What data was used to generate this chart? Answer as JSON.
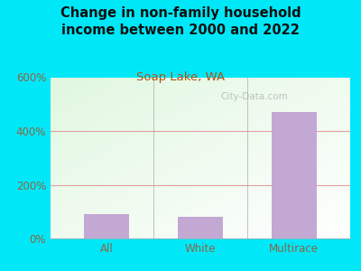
{
  "title": "Change in non-family household\nincome between 2000 and 2022",
  "subtitle": "Soap Lake, WA",
  "categories": [
    "All",
    "White",
    "Multirace"
  ],
  "values": [
    90,
    80,
    470
  ],
  "bar_color": "#c4a8d4",
  "background_outer": "#00e8f8",
  "background_plot": "#e8f5e4",
  "title_color": "#111111",
  "subtitle_color": "#b05010",
  "tick_color": "#886644",
  "grid_color": "#e0a0a0",
  "ylim": [
    0,
    600
  ],
  "yticks": [
    0,
    200,
    400,
    600
  ],
  "ytick_labels": [
    "0%",
    "200%",
    "400%",
    "600%"
  ],
  "watermark": "City-Data.com",
  "title_fontsize": 10.5,
  "subtitle_fontsize": 9.5,
  "tick_fontsize": 8.5
}
